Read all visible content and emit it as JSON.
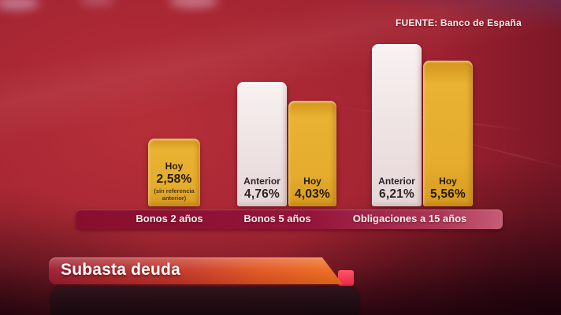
{
  "header": {
    "source_label": "FUENTE: Banco de España"
  },
  "banner": {
    "title": "Subasta deuda"
  },
  "chart_data": {
    "type": "bar",
    "unit": "%",
    "ylim": [
      0,
      6.6
    ],
    "grid": false,
    "legend": [
      "Anterior",
      "Hoy"
    ],
    "legend_position": "inside-bars",
    "categories": [
      "Bonos 2 años",
      "Bonos 5 años",
      "Obligaciones a 15 años"
    ],
    "groups": [
      {
        "category": "Bonos 2 años",
        "bars": [
          {
            "series": "Hoy",
            "label": "Hoy",
            "value": 2.58,
            "value_label": "2,58%",
            "note": "(sin referencia anterior)",
            "color": "gold"
          }
        ]
      },
      {
        "category": "Bonos 5 años",
        "bars": [
          {
            "series": "Anterior",
            "label": "Anterior",
            "value": 4.76,
            "value_label": "4,76%",
            "color": "white"
          },
          {
            "series": "Hoy",
            "label": "Hoy",
            "value": 4.03,
            "value_label": "4,03%",
            "color": "gold"
          }
        ]
      },
      {
        "category": "Obligaciones a 15 años",
        "bars": [
          {
            "series": "Anterior",
            "label": "Anterior",
            "value": 6.21,
            "value_label": "6,21%",
            "color": "white"
          },
          {
            "series": "Hoy",
            "label": "Hoy",
            "value": 5.56,
            "value_label": "5,56%",
            "color": "gold"
          }
        ]
      }
    ],
    "colors": {
      "bar_hoy": "#e2a724",
      "bar_anterior": "#efe7e6",
      "category_strip": "#95153a",
      "banner_left": "#9a1b2e",
      "banner_right": "#f06d1c",
      "accent_tab": "#f43b55",
      "background": "#9e2130"
    }
  }
}
